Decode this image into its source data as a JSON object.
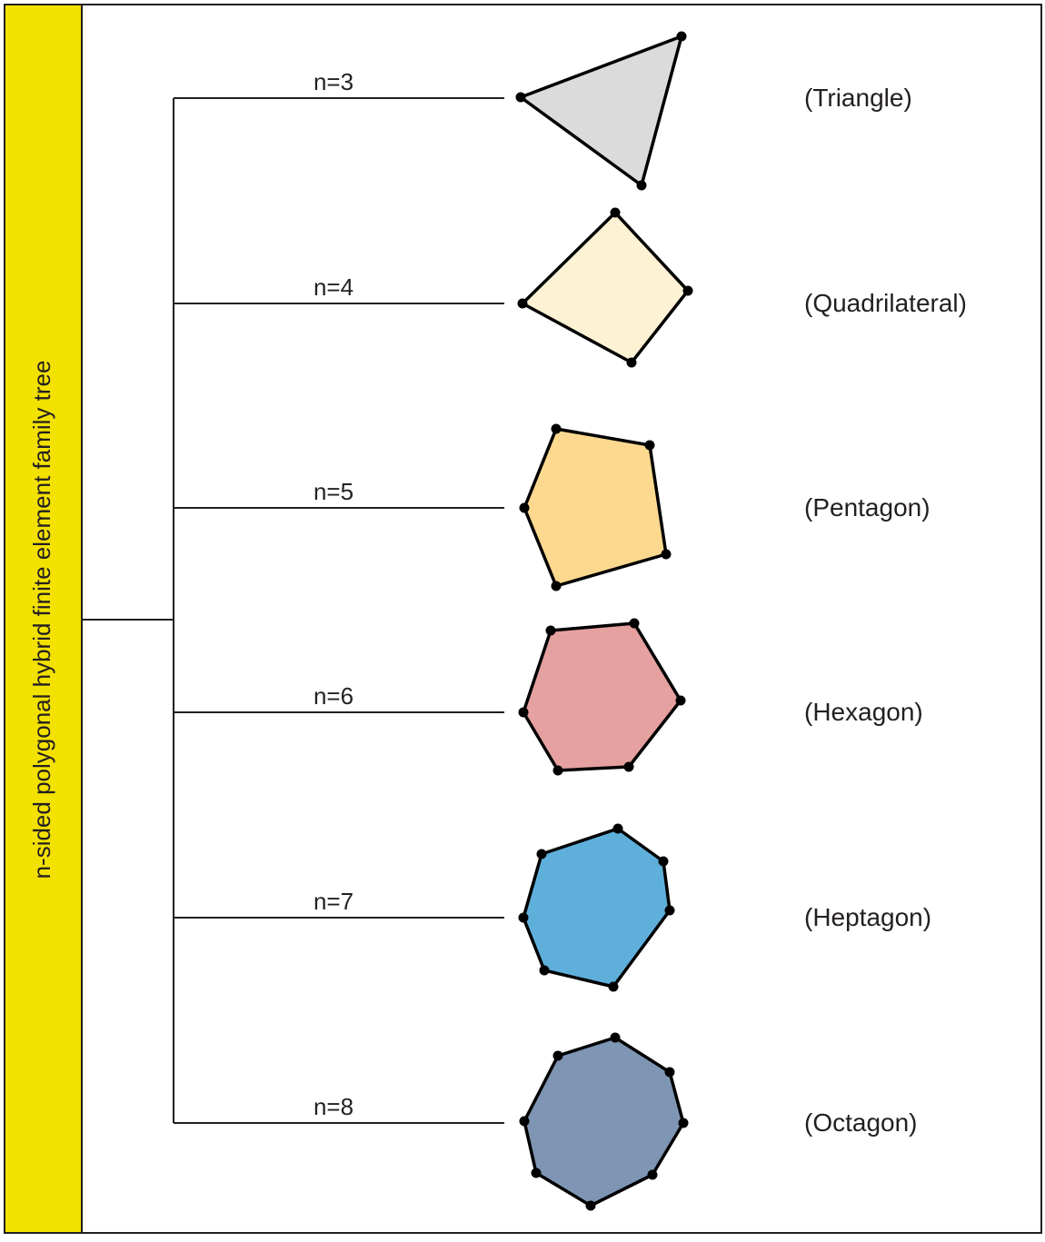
{
  "title": "n-sided polygonal hybrid finite element family tree",
  "nodes": [
    {
      "label": "n=3",
      "name": "(Triangle)"
    },
    {
      "label": "n=4",
      "name": "(Quadrilateral)"
    },
    {
      "label": "n=5",
      "name": "(Pentagon)"
    },
    {
      "label": "n=6",
      "name": "(Hexagon)"
    },
    {
      "label": "n=7",
      "name": "(Heptagon)"
    },
    {
      "label": "n=8",
      "name": "(Octagon)"
    }
  ]
}
